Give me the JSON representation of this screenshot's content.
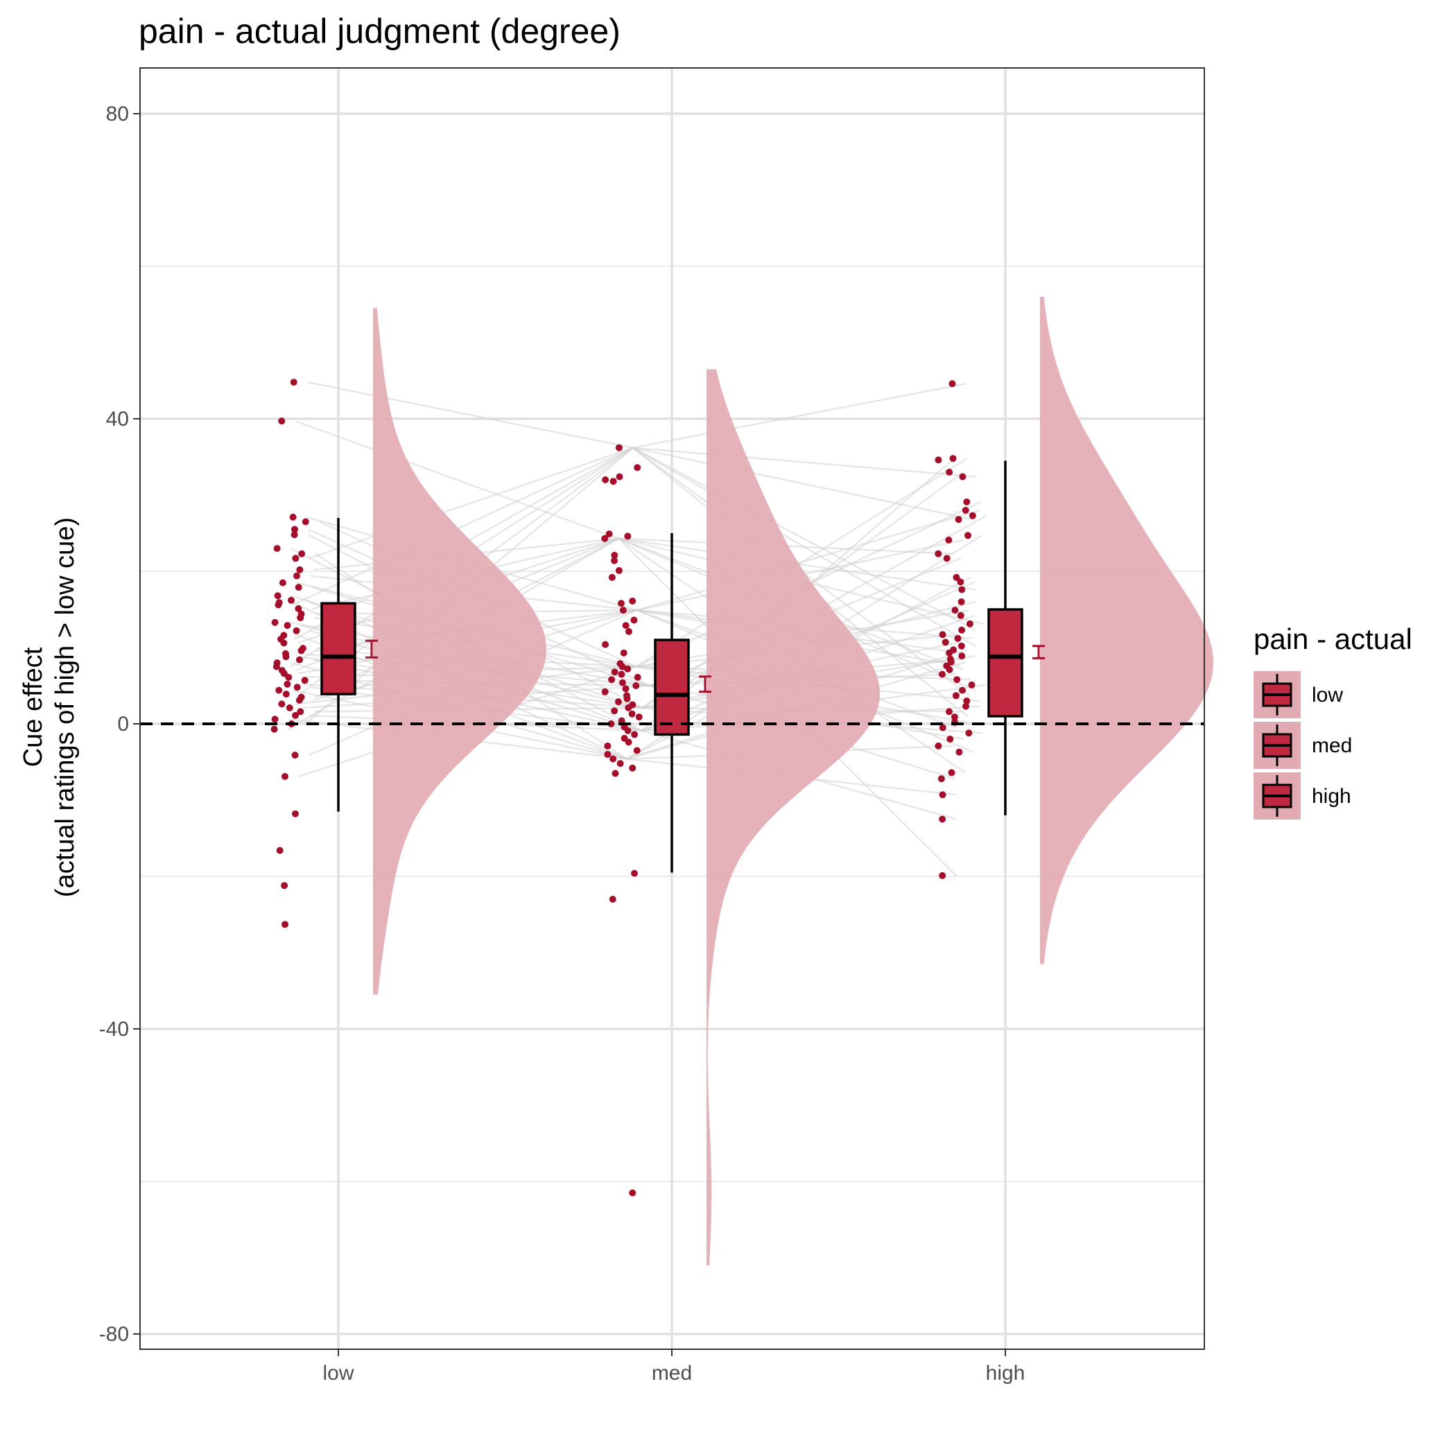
{
  "chart_data": {
    "type": "raincloud",
    "title": "pain  - actual judgment (degree)",
    "xlabel": "",
    "ylabel_lines": [
      "Cue effect",
      "(actual ratings of high > low cue)"
    ],
    "categories": [
      "low",
      "med",
      "high"
    ],
    "ylim": [
      -82,
      86
    ],
    "yticks": [
      80,
      40,
      0,
      -40,
      -80
    ],
    "ytick_labels": [
      "80",
      "40",
      "0",
      "-40",
      "-80"
    ],
    "grid": true,
    "reference_line": 0,
    "colors": {
      "point": "#a50f2b",
      "box_fill": "#c0283f",
      "cloud_fill": "#e2aab3",
      "line": "#cfcfcf",
      "panel_border": "#333333"
    },
    "legend": {
      "title": "pain  - actual",
      "placement": "right",
      "entries": [
        "low",
        "med",
        "high"
      ]
    },
    "boxplots": [
      {
        "category": "low",
        "whisker_low": -11.5,
        "q1": 3.9,
        "median": 8.8,
        "q3": 15.8,
        "whisker_high": 27.0
      },
      {
        "category": "med",
        "whisker_low": -19.5,
        "q1": -1.4,
        "median": 3.8,
        "q3": 11.0,
        "whisker_high": 25.0
      },
      {
        "category": "high",
        "whisker_low": -12.0,
        "q1": 1.0,
        "median": 8.8,
        "q3": 15.0,
        "whisker_high": 34.5
      }
    ],
    "mean_se": [
      {
        "category": "low",
        "mean": 9.8,
        "se_low": 8.7,
        "se_high": 10.9
      },
      {
        "category": "med",
        "mean": 5.2,
        "se_low": 4.2,
        "se_high": 6.2
      },
      {
        "category": "high",
        "mean": 9.4,
        "se_low": 8.6,
        "se_high": 10.2
      }
    ],
    "points": {
      "low": [
        44.8,
        39.7,
        27.1,
        26.5,
        25.5,
        24.8,
        23.0,
        22.3,
        21.7,
        20.2,
        19.4,
        18.5,
        17.9,
        16.8,
        16.2,
        15.9,
        15.6,
        15.1,
        14.4,
        13.9,
        13.3,
        12.9,
        12.2,
        11.6,
        11.1,
        10.6,
        9.9,
        9.6,
        9.2,
        8.8,
        8.4,
        8.0,
        7.5,
        7.0,
        6.6,
        6.1,
        5.7,
        5.2,
        4.8,
        4.4,
        3.9,
        3.5,
        3.1,
        2.6,
        2.1,
        1.6,
        1.1,
        0.6,
        0.0,
        -0.7,
        -4.1,
        -6.9,
        -11.8,
        -16.6,
        -21.2,
        -26.3
      ],
      "med": [
        36.2,
        33.6,
        32.4,
        32.0,
        31.8,
        24.9,
        24.6,
        24.3,
        22.1,
        21.4,
        20.1,
        19.2,
        16.1,
        15.8,
        14.9,
        13.6,
        12.9,
        12.1,
        10.4,
        9.3,
        7.9,
        7.5,
        7.2,
        6.8,
        6.5,
        6.1,
        5.8,
        5.4,
        5.0,
        4.6,
        4.2,
        3.7,
        3.3,
        2.9,
        2.5,
        2.1,
        1.7,
        1.3,
        0.9,
        0.4,
        0.0,
        -0.4,
        -0.9,
        -1.4,
        -1.9,
        -2.4,
        -2.9,
        -3.5,
        -4.0,
        -4.6,
        -5.2,
        -5.8,
        -6.5,
        -19.6,
        -23.0,
        -61.5
      ],
      "high": [
        44.6,
        34.8,
        34.6,
        33.0,
        32.4,
        29.1,
        28.0,
        27.3,
        26.8,
        24.7,
        24.1,
        22.3,
        21.7,
        19.2,
        18.6,
        17.6,
        16.0,
        14.9,
        14.2,
        13.1,
        12.3,
        11.7,
        11.2,
        10.7,
        10.2,
        9.7,
        9.3,
        8.9,
        8.5,
        8.1,
        7.6,
        7.1,
        6.5,
        5.8,
        5.1,
        4.4,
        3.7,
        3.0,
        2.3,
        1.6,
        0.9,
        0.2,
        -0.5,
        -1.2,
        -2.0,
        -2.9,
        -3.7,
        -6.4,
        -7.2,
        -9.3,
        -12.5,
        -19.9
      ]
    },
    "density_peaks": [
      {
        "category": "low",
        "y_peak": 7.5,
        "y_min": -35.5,
        "y_max": 54.5
      },
      {
        "category": "med",
        "y_peak": 2.5,
        "y_min": -71.0,
        "y_max": 46.5
      },
      {
        "category": "high",
        "y_peak": 7.0,
        "y_min": -31.5,
        "y_max": 56.0
      }
    ]
  }
}
